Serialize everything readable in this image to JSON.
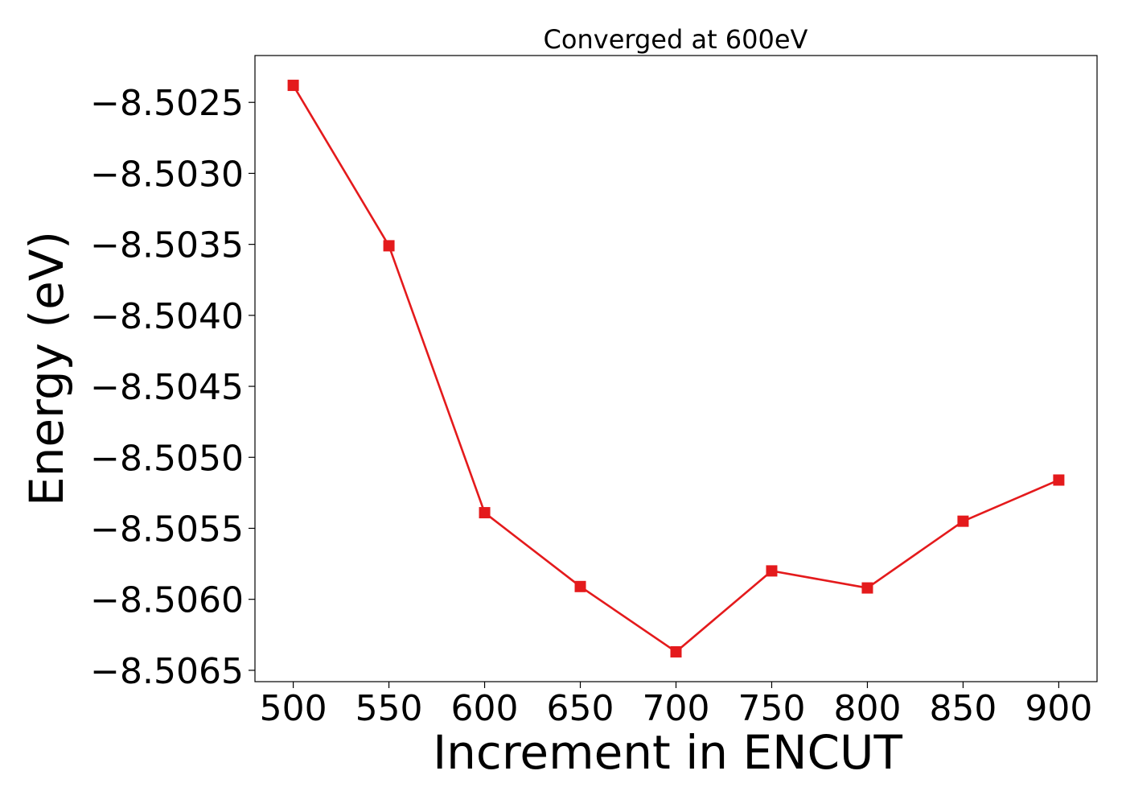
{
  "chart_data": {
    "type": "line",
    "title": "Converged at 600eV",
    "xlabel": "Increment in ENCUT",
    "ylabel": "Energy (eV)",
    "x": [
      500,
      550,
      600,
      650,
      700,
      750,
      800,
      850,
      900
    ],
    "series": [
      {
        "values": [
          -8.50238,
          -8.50351,
          -8.50539,
          -8.50591,
          -8.50637,
          -8.5058,
          -8.50592,
          -8.50545,
          -8.50516
        ],
        "color": "#e41a1c",
        "marker": "square"
      }
    ],
    "xticks": [
      500,
      550,
      600,
      650,
      700,
      750,
      800,
      850,
      900
    ],
    "xtick_labels": [
      "500",
      "550",
      "600",
      "650",
      "700",
      "750",
      "800",
      "850",
      "900"
    ],
    "yticks": [
      -8.5025,
      -8.503,
      -8.5035,
      -8.504,
      -8.5045,
      -8.505,
      -8.5055,
      -8.506,
      -8.5065
    ],
    "ytick_labels": [
      "−8.5025",
      "−8.5030",
      "−8.5035",
      "−8.5040",
      "−8.5045",
      "−8.5050",
      "−8.5055",
      "−8.5060",
      "−8.5065"
    ],
    "xlim": [
      480,
      920
    ],
    "ylim": [
      -8.50658,
      -8.50217
    ],
    "grid": false,
    "legend": false
  }
}
